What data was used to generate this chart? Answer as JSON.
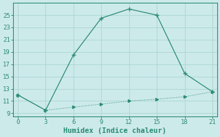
{
  "xlabel": "Humidex (Indice chaleur)",
  "line1_x": [
    0,
    3,
    6,
    9,
    12,
    15,
    18,
    21
  ],
  "line1_y": [
    12,
    9.5,
    18.5,
    24.5,
    26.0,
    25.0,
    15.5,
    12.5
  ],
  "line2_x": [
    0,
    3,
    6,
    9,
    12,
    15,
    18,
    21
  ],
  "line2_y": [
    12.0,
    9.5,
    10.0,
    10.5,
    11.0,
    11.3,
    11.7,
    12.5
  ],
  "line_color": "#2a8b74",
  "bg_color": "#cdeaea",
  "grid_color": "#b0d8d8",
  "xlim": [
    -0.5,
    21.5
  ],
  "ylim": [
    8.5,
    27.0
  ],
  "xticks": [
    0,
    3,
    6,
    9,
    12,
    15,
    18,
    21
  ],
  "yticks": [
    9,
    11,
    13,
    15,
    17,
    19,
    21,
    23,
    25
  ],
  "tick_fontsize": 6.5,
  "xlabel_fontsize": 7.5
}
